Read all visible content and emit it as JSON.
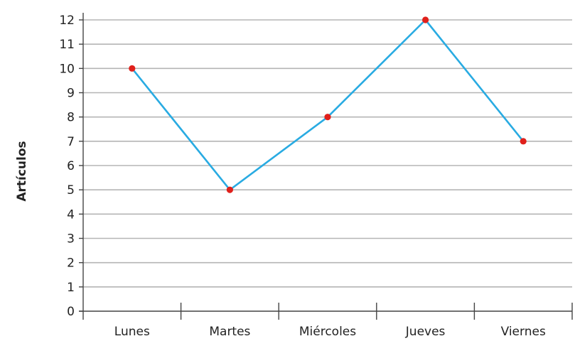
{
  "chart_data": {
    "type": "line",
    "title": "",
    "xlabel": "",
    "ylabel": "Artículos",
    "categories": [
      "Lunes",
      "Martes",
      "Miércoles",
      "Jueves",
      "Viernes"
    ],
    "series": [
      {
        "values": [
          10,
          5,
          8,
          12,
          7
        ]
      }
    ],
    "ylim": [
      0,
      12
    ],
    "yticks": [
      0,
      1,
      2,
      3,
      4,
      5,
      6,
      7,
      8,
      9,
      10,
      11,
      12
    ],
    "grid": true,
    "legend": "none",
    "colors": {
      "line": "#29abe2",
      "marker": "#e0201b",
      "grid": "#b5b5b5",
      "axis": "#444444"
    }
  }
}
